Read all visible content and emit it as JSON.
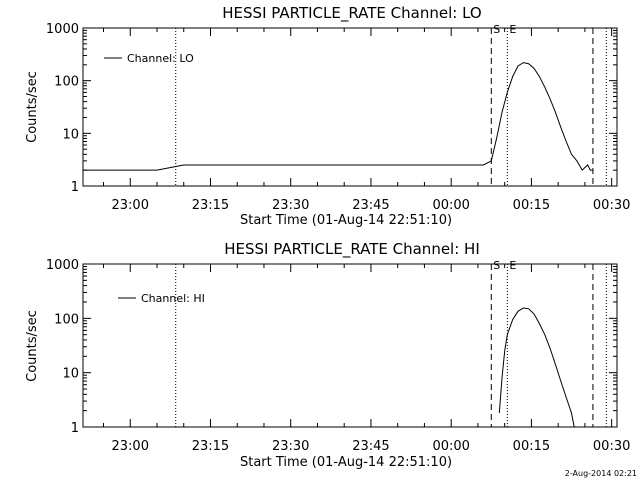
{
  "footer": {
    "stamp": "2-Aug-2014 02:21"
  },
  "chart_data": [
    {
      "type": "line",
      "title": "HESSI PARTICLE_RATE Channel: LO",
      "xlabel": "Start Time (01-Aug-14 22:51:10)",
      "ylabel": "Counts/sec",
      "y_scale": "log",
      "ylim": [
        1,
        1000
      ],
      "xlim": [
        "22:51:10",
        "00:31:00"
      ],
      "x_ticks": [
        "23:00",
        "23:15",
        "23:30",
        "23:45",
        "00:00",
        "00:15",
        "00:30"
      ],
      "y_ticks": [
        "1",
        "10",
        "100",
        "1000"
      ],
      "legend": {
        "position": "top-left",
        "entries": [
          "Channel: LO"
        ]
      },
      "markers": [
        {
          "label": "S",
          "time": "00:07:30",
          "style": "dashed"
        },
        {
          "label": "E",
          "time": "00:10:30",
          "style": "dotted"
        },
        {
          "label": "",
          "time": "23:08:30",
          "style": "dotted"
        },
        {
          "label": "",
          "time": "00:26:30",
          "style": "dashed"
        },
        {
          "label": "",
          "time": "00:29:00",
          "style": "dotted"
        }
      ],
      "series": [
        {
          "name": "Channel: LO",
          "points": [
            [
              "22:51:10",
              2
            ],
            [
              "22:52:00",
              2
            ],
            [
              "22:54:00",
              2
            ],
            [
              "22:58:00",
              2
            ],
            [
              "23:05:00",
              2
            ],
            [
              "23:10:00",
              2.5
            ],
            [
              "23:20:00",
              2.5
            ],
            [
              "23:35:00",
              2.5
            ],
            [
              "23:45:00",
              2.5
            ],
            [
              "23:55:00",
              2.5
            ],
            [
              "00:06:00",
              2.5
            ],
            [
              "00:07:30",
              3
            ],
            [
              "00:08:30",
              8
            ],
            [
              "00:09:30",
              25
            ],
            [
              "00:10:30",
              60
            ],
            [
              "00:11:30",
              120
            ],
            [
              "00:12:30",
              190
            ],
            [
              "00:13:30",
              220
            ],
            [
              "00:14:30",
              210
            ],
            [
              "00:15:30",
              170
            ],
            [
              "00:16:30",
              120
            ],
            [
              "00:17:30",
              75
            ],
            [
              "00:18:30",
              45
            ],
            [
              "00:19:30",
              25
            ],
            [
              "00:20:30",
              13
            ],
            [
              "00:21:30",
              7
            ],
            [
              "00:22:30",
              4
            ],
            [
              "00:23:30",
              3
            ],
            [
              "00:24:30",
              2
            ],
            [
              "00:25:30",
              2.5
            ],
            [
              "00:26:00",
              2
            ],
            [
              "00:26:30",
              2
            ]
          ]
        }
      ]
    },
    {
      "type": "line",
      "title": "HESSI PARTICLE_RATE Channel: HI",
      "xlabel": "Start Time (01-Aug-14 22:51:10)",
      "ylabel": "Counts/sec",
      "y_scale": "log",
      "ylim": [
        1,
        1000
      ],
      "xlim": [
        "22:51:10",
        "00:31:00"
      ],
      "x_ticks": [
        "23:00",
        "23:15",
        "23:30",
        "23:45",
        "00:00",
        "00:15",
        "00:30"
      ],
      "y_ticks": [
        "1",
        "10",
        "100",
        "1000"
      ],
      "legend": {
        "position": "top-left",
        "entries": [
          "Channel: HI"
        ]
      },
      "markers": [
        {
          "label": "S",
          "time": "00:07:30",
          "style": "dashed"
        },
        {
          "label": "E",
          "time": "00:10:30",
          "style": "dotted"
        },
        {
          "label": "",
          "time": "23:08:30",
          "style": "dotted"
        },
        {
          "label": "",
          "time": "00:26:30",
          "style": "dashed"
        },
        {
          "label": "",
          "time": "00:29:00",
          "style": "dotted"
        }
      ],
      "series": [
        {
          "name": "Channel: HI",
          "points": [
            [
              "00:09:00",
              1.8
            ],
            [
              "00:09:30",
              8
            ],
            [
              "00:10:00",
              25
            ],
            [
              "00:10:30",
              50
            ],
            [
              "00:11:30",
              95
            ],
            [
              "00:12:30",
              135
            ],
            [
              "00:13:30",
              155
            ],
            [
              "00:14:30",
              150
            ],
            [
              "00:15:30",
              120
            ],
            [
              "00:16:30",
              80
            ],
            [
              "00:17:30",
              50
            ],
            [
              "00:18:30",
              28
            ],
            [
              "00:19:30",
              14
            ],
            [
              "00:20:30",
              7
            ],
            [
              "00:21:30",
              3.5
            ],
            [
              "00:22:30",
              1.8
            ],
            [
              "00:23:00",
              1
            ]
          ]
        }
      ]
    }
  ]
}
